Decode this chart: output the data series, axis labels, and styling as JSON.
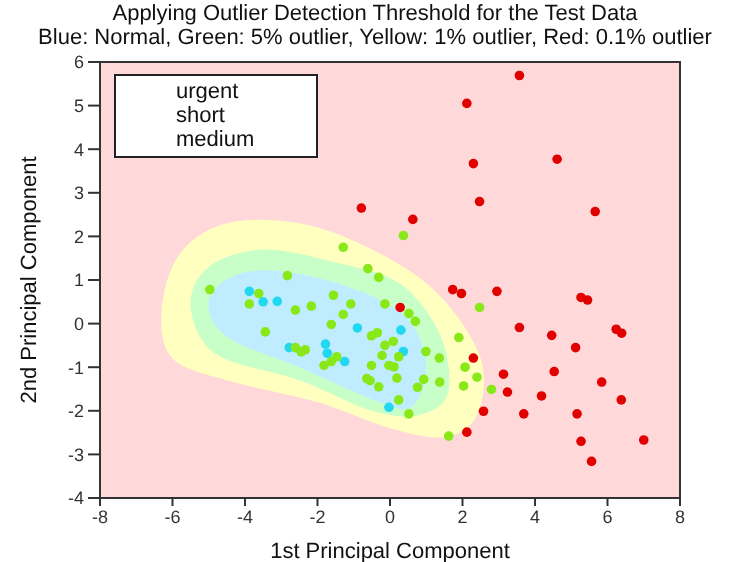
{
  "chart_data": {
    "type": "scatter",
    "title": "Applying Outlier Detection Threshold for the Test Data",
    "subtitle": "Blue: Normal, Green: 5% outlier, Yellow: 1% outlier, Red: 0.1% outlier",
    "xlabel": "1st Principal Component",
    "ylabel": "2nd Principal Component",
    "xlim": [
      -8,
      8
    ],
    "xticks": [
      -8,
      -6,
      -4,
      -2,
      0,
      2,
      4,
      6,
      8
    ],
    "ylim": [
      -4,
      6
    ],
    "yticks": [
      -4,
      -3,
      -2,
      -1,
      0,
      1,
      2,
      3,
      4,
      5,
      6
    ],
    "grid": false,
    "legend": false,
    "marker": "circle",
    "annotations": [
      "urgent",
      "short",
      "medium"
    ],
    "series": [
      {
        "color": "#22d8f0",
        "x": [
          -3.88,
          -3.5,
          -3.11,
          -0.9,
          -2.78,
          -1.78,
          -1.73,
          -1.25,
          -0.03,
          0.3,
          0.37
        ],
        "values": [
          0.74,
          0.5,
          0.51,
          -0.1,
          -0.55,
          -0.47,
          -0.68,
          -0.87,
          -1.92,
          -0.15,
          -0.64
        ]
      },
      {
        "color": "#88e818",
        "x": [
          -1.29,
          -0.61,
          -0.31,
          0.37,
          -2.83,
          -4.97,
          -3.62,
          -3.88,
          -3.44,
          -2.61,
          -2.17,
          -1.56,
          -1.08,
          -1.29,
          -1.62,
          -2.61,
          -2.45,
          -2.34,
          -1.47,
          -1.82,
          -1.62,
          -0.14,
          -0.35,
          -0.51,
          -0.14,
          -0.22,
          -0.51,
          -0.03,
          0.11,
          -0.64,
          -0.55,
          0.19,
          -0.31,
          0.24,
          0.24,
          2.47,
          0.52,
          0.7,
          0.09,
          1.9,
          0.99,
          1.36,
          2.07,
          0.93,
          1.37,
          2.4,
          2.03,
          2.8,
          0.76,
          0.52,
          1.62
        ],
        "values": [
          1.75,
          1.26,
          1.06,
          2.02,
          1.1,
          0.78,
          0.69,
          0.45,
          -0.19,
          0.31,
          0.4,
          0.65,
          0.45,
          0.21,
          -0.02,
          -0.55,
          -0.65,
          -0.6,
          -0.76,
          -0.96,
          -0.87,
          0.45,
          -0.21,
          -0.28,
          -0.5,
          -0.73,
          -0.96,
          -0.96,
          -0.99,
          -1.26,
          -1.31,
          -1.25,
          -1.45,
          -1.75,
          -0.76,
          0.37,
          0.23,
          0.05,
          -0.41,
          -0.32,
          -0.64,
          -0.79,
          -1.0,
          -1.28,
          -1.34,
          -1.23,
          -1.43,
          -1.51,
          -1.46,
          -2.07,
          -2.58
        ]
      },
      {
        "color": "#e00000",
        "x": [
          -0.79,
          3.57,
          2.12,
          2.3,
          4.61,
          2.47,
          5.66,
          0.63,
          0.28,
          1.73,
          1.97,
          2.95,
          5.27,
          5.45,
          3.57,
          4.46,
          5.12,
          6.24,
          6.39,
          2.3,
          3.13,
          4.53,
          5.84,
          3.24,
          4.18,
          6.38,
          2.58,
          3.69,
          5.16,
          2.12,
          5.27,
          7.0,
          5.56
        ],
        "values": [
          2.65,
          5.69,
          5.05,
          3.67,
          3.77,
          2.8,
          2.57,
          2.39,
          0.37,
          0.78,
          0.69,
          0.74,
          0.6,
          0.54,
          -0.09,
          -0.27,
          -0.55,
          -0.13,
          -0.22,
          -0.79,
          -1.16,
          -1.1,
          -1.34,
          -1.57,
          -1.66,
          -1.75,
          -2.01,
          -2.07,
          -2.07,
          -2.49,
          -2.7,
          -2.67,
          -3.16
        ]
      }
    ]
  }
}
